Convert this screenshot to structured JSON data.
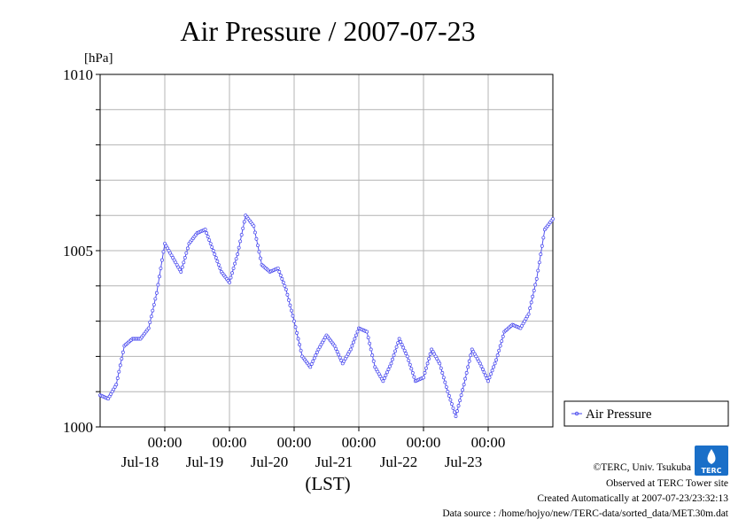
{
  "chart_data": {
    "type": "line",
    "title": "Air Pressure / 2007-07-23",
    "ylabel": "[hPa]",
    "xlabel": "(LST)",
    "ylim": [
      1000,
      1010
    ],
    "y_ticks": [
      "1010",
      "1005",
      "1000"
    ],
    "y_tick_values": [
      1010,
      1005,
      1000
    ],
    "x_ticks": [
      {
        "time": "00:00",
        "date": "Jul-18"
      },
      {
        "time": "00:00",
        "date": "Jul-19"
      },
      {
        "time": "00:00",
        "date": "Jul-20"
      },
      {
        "time": "00:00",
        "date": "Jul-21"
      },
      {
        "time": "00:00",
        "date": "Jul-22"
      },
      {
        "time": "00:00",
        "date": "Jul-23"
      }
    ],
    "x_tick_hours": [
      24,
      48,
      72,
      96,
      120,
      144
    ],
    "xlim_hours": [
      0,
      168
    ],
    "grid": true,
    "legend_position": "right",
    "series_color": "#4444ee",
    "series": [
      {
        "name": "Air Pressure",
        "x_hours": [
          0,
          3,
          6,
          9,
          12,
          15,
          18,
          21,
          24,
          27,
          30,
          33,
          36,
          39,
          42,
          45,
          48,
          51,
          54,
          57,
          60,
          63,
          66,
          69,
          72,
          75,
          78,
          81,
          84,
          87,
          90,
          93,
          96,
          99,
          102,
          105,
          108,
          111,
          114,
          117,
          120,
          123,
          126,
          129,
          132,
          135,
          138,
          141,
          144,
          147,
          150,
          153,
          156,
          159,
          162,
          165,
          168
        ],
        "values": [
          1000.9,
          1000.8,
          1001.2,
          1002.3,
          1002.5,
          1002.5,
          1002.8,
          1003.8,
          1005.2,
          1004.8,
          1004.4,
          1005.2,
          1005.5,
          1005.6,
          1005.0,
          1004.4,
          1004.1,
          1004.9,
          1006.0,
          1005.7,
          1004.6,
          1004.4,
          1004.5,
          1003.9,
          1003.0,
          1002.0,
          1001.7,
          1002.2,
          1002.6,
          1002.3,
          1001.8,
          1002.2,
          1002.8,
          1002.7,
          1001.7,
          1001.3,
          1001.8,
          1002.5,
          1002.0,
          1001.3,
          1001.4,
          1002.2,
          1001.8,
          1001.0,
          1000.3,
          1001.2,
          1002.2,
          1001.8,
          1001.3,
          1001.9,
          1002.7,
          1002.9,
          1002.8,
          1003.2,
          1004.2,
          1005.6,
          1005.9
        ]
      }
    ]
  },
  "credits": {
    "line1": "©TERC, Univ. Tsukuba",
    "line2": "Observed at TERC Tower site",
    "line3": "Created Automatically at 2007-07-23/23:32:13",
    "line4": "Data source : /home/hojyo/new/TERC-data/sorted_data/MET.30m.dat",
    "logo_text": "TERC"
  }
}
